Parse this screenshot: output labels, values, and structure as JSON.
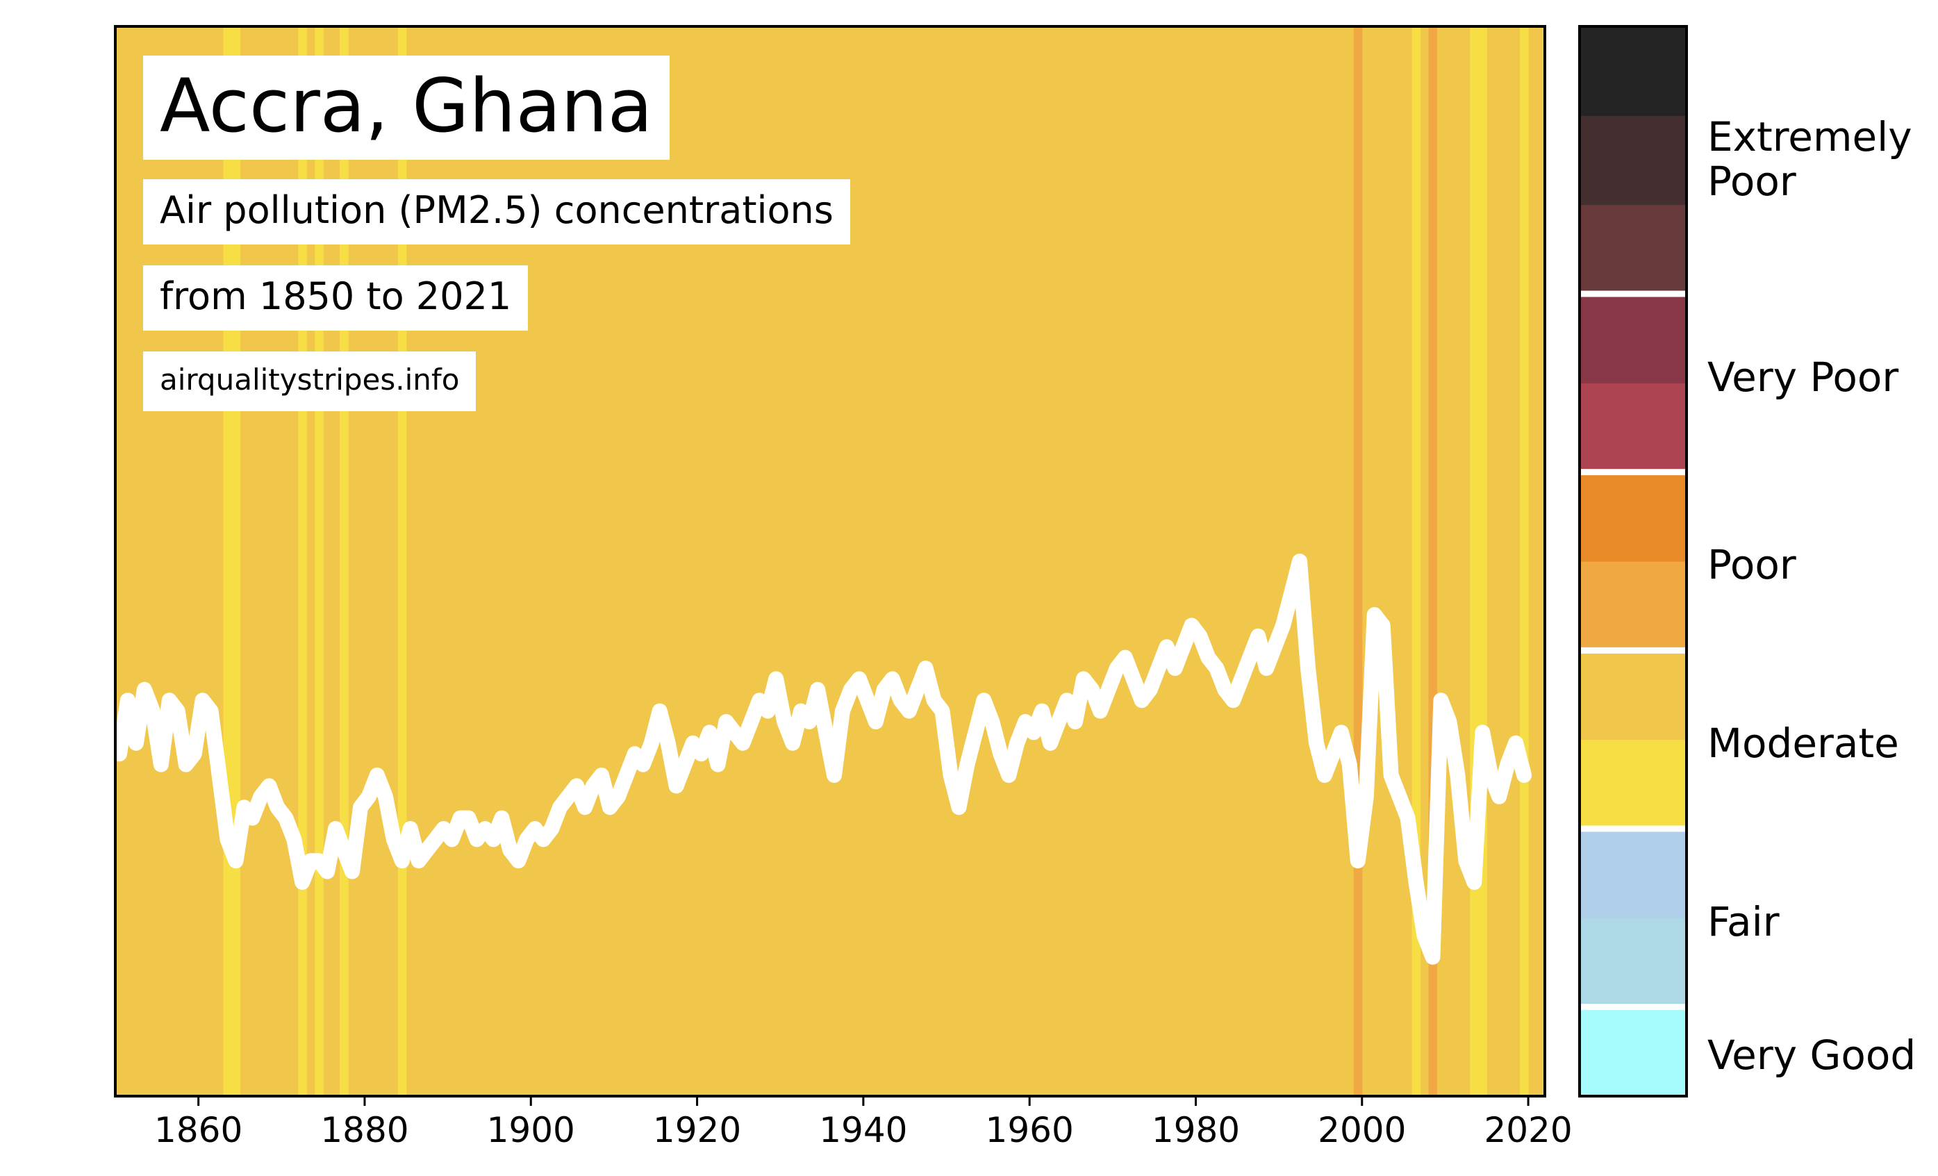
{
  "title": "Accra, Ghana",
  "subtitle": "Air pollution (PM2.5) concentrations",
  "period": "from 1850 to 2021",
  "source": "airqualitystripes.info",
  "colors": {
    "very_good": "#a6fcfc",
    "fair_1": "#add8e6",
    "fair_2": "#b0cfeb",
    "moderate_1": "#f6de44",
    "moderate_2": "#f0c74b",
    "poor_1": "#f0a842",
    "poor_2": "#e88a27",
    "very_poor_1": "#ac4452",
    "very_poor_2": "#883846",
    "extremely_poor_1": "#693a3c",
    "extremely_poor_2": "#452e30",
    "extremely_poor_3": "#242424",
    "line": "#ffffff"
  },
  "chart_data": {
    "type": "heatmap",
    "x_axis": {
      "xlim": [
        1850,
        2022
      ],
      "ticks": [
        1860,
        1880,
        1900,
        1920,
        1940,
        1960,
        1980,
        2000,
        2020
      ]
    },
    "base_stripe_color": "#f0c74b",
    "stripe_overrides": [
      {
        "year": 1863,
        "color": "#f6de44"
      },
      {
        "year": 1864,
        "color": "#f6de44"
      },
      {
        "year": 1872,
        "color": "#f6de44"
      },
      {
        "year": 1874,
        "color": "#f6de44"
      },
      {
        "year": 1877,
        "color": "#f6de44"
      },
      {
        "year": 1884,
        "color": "#f6de44"
      },
      {
        "year": 1999,
        "color": "#f0a842"
      },
      {
        "year": 2006,
        "color": "#f6de44"
      },
      {
        "year": 2008,
        "color": "#f0a842"
      },
      {
        "year": 2013,
        "color": "#f6de44"
      },
      {
        "year": 2014,
        "color": "#f6de44"
      },
      {
        "year": 2019,
        "color": "#f6de44"
      }
    ],
    "line_series": {
      "name": "PM2.5 level (relative)",
      "x_start": 1850,
      "values": [
        0.32,
        0.37,
        0.33,
        0.38,
        0.36,
        0.31,
        0.37,
        0.36,
        0.31,
        0.32,
        0.37,
        0.36,
        0.3,
        0.24,
        0.22,
        0.27,
        0.26,
        0.28,
        0.29,
        0.27,
        0.26,
        0.24,
        0.2,
        0.22,
        0.22,
        0.21,
        0.25,
        0.23,
        0.21,
        0.27,
        0.28,
        0.3,
        0.28,
        0.24,
        0.22,
        0.25,
        0.22,
        0.23,
        0.24,
        0.25,
        0.24,
        0.26,
        0.26,
        0.24,
        0.25,
        0.24,
        0.26,
        0.23,
        0.22,
        0.24,
        0.25,
        0.24,
        0.25,
        0.27,
        0.28,
        0.29,
        0.27,
        0.29,
        0.3,
        0.27,
        0.28,
        0.3,
        0.32,
        0.31,
        0.33,
        0.36,
        0.33,
        0.29,
        0.31,
        0.33,
        0.32,
        0.34,
        0.31,
        0.35,
        0.34,
        0.33,
        0.35,
        0.37,
        0.36,
        0.39,
        0.35,
        0.33,
        0.36,
        0.35,
        0.38,
        0.34,
        0.3,
        0.36,
        0.38,
        0.39,
        0.37,
        0.35,
        0.38,
        0.39,
        0.37,
        0.36,
        0.38,
        0.4,
        0.37,
        0.36,
        0.3,
        0.27,
        0.31,
        0.34,
        0.37,
        0.35,
        0.32,
        0.3,
        0.33,
        0.35,
        0.34,
        0.36,
        0.33,
        0.35,
        0.37,
        0.35,
        0.39,
        0.38,
        0.36,
        0.38,
        0.4,
        0.41,
        0.39,
        0.37,
        0.38,
        0.4,
        0.42,
        0.4,
        0.42,
        0.44,
        0.43,
        0.41,
        0.4,
        0.38,
        0.37,
        0.39,
        0.41,
        0.43,
        0.4,
        0.42,
        0.44,
        0.47,
        0.5,
        0.4,
        0.33,
        0.3,
        0.32,
        0.34,
        0.31,
        0.22,
        0.28,
        0.45,
        0.44,
        0.3,
        0.28,
        0.26,
        0.2,
        0.15,
        0.13,
        0.37,
        0.35,
        0.3,
        0.22,
        0.2,
        0.34,
        0.3,
        0.28,
        0.31,
        0.33,
        0.3
      ],
      "y_scale_note": "relative position within plot height (0 = bottom, 1 = top)"
    },
    "legend": {
      "type": "colorbar",
      "segments": [
        {
          "color": "#a6fcfc",
          "category": "Very Good"
        },
        {
          "color": "#add8e6",
          "category": "Fair"
        },
        {
          "color": "#b0cfeb",
          "category": "Fair"
        },
        {
          "color": "#f6de44",
          "category": "Moderate"
        },
        {
          "color": "#f0c74b",
          "category": "Moderate"
        },
        {
          "color": "#f0a842",
          "category": "Poor"
        },
        {
          "color": "#e88a27",
          "category": "Poor"
        },
        {
          "color": "#ac4452",
          "category": "Very Poor"
        },
        {
          "color": "#883846",
          "category": "Very Poor"
        },
        {
          "color": "#693a3c",
          "category": "Extremely Poor"
        },
        {
          "color": "#452e30",
          "category": "Extremely Poor"
        },
        {
          "color": "#242424",
          "category": "Extremely Poor"
        }
      ],
      "labels": [
        "Very Good",
        "Fair",
        "Moderate",
        "Poor",
        "Very Poor",
        "Extremely Poor"
      ],
      "label_lines": {
        "very_good": "Very Good",
        "fair": "Fair",
        "moderate": "Moderate",
        "poor": "Poor",
        "very_poor": "Very Poor",
        "extremely_poor_1": "Extremely",
        "extremely_poor_2": "Poor"
      }
    }
  }
}
